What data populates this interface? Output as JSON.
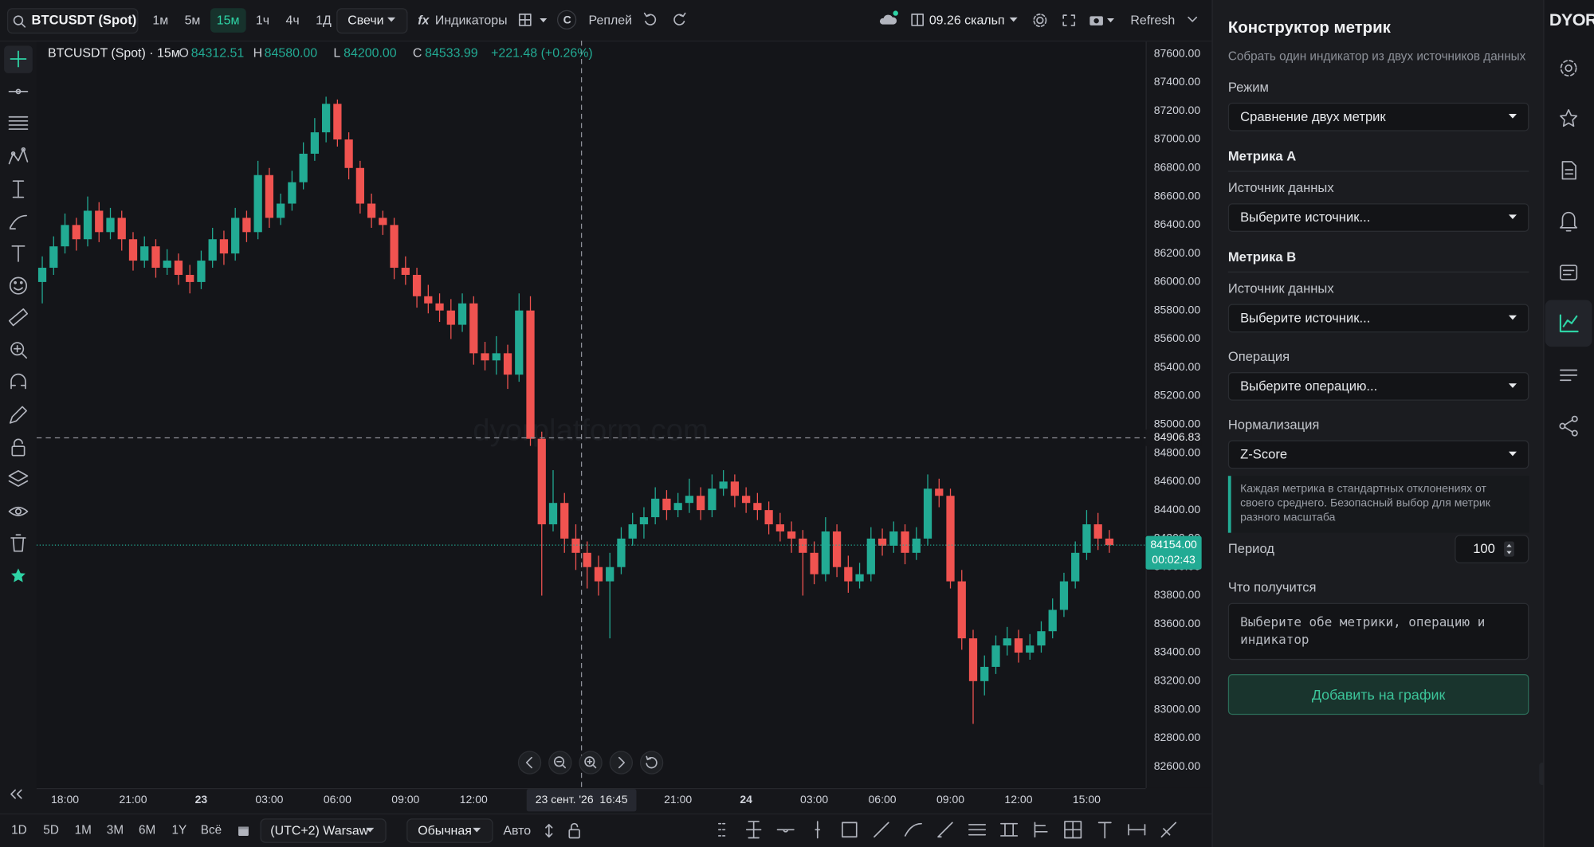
{
  "logo": "DYOR",
  "top_bar": {
    "symbol": "BTCUSDT (Spot)",
    "intervals": [
      "1м",
      "5м",
      "15м",
      "1ч",
      "4ч",
      "1Д"
    ],
    "active_interval": 2,
    "chart_style": "Свечи",
    "indicators_icon": "fx",
    "indicators": "Индикаторы",
    "compare": "C",
    "replay": "Реплей",
    "layout": "09.26 скальп",
    "refresh": "Refresh"
  },
  "legend": {
    "title": "BTCUSDT (Spot) · 15м",
    "open_label": "O",
    "open": "84312.51",
    "high_label": "H",
    "high": "84580.00",
    "low_label": "L",
    "low": "84200.00",
    "close_label": "C",
    "close": "84533.99",
    "change": "+221.48 (+0.26%)"
  },
  "chart_data": {
    "type": "candlestick",
    "watermark": "dyorplatform.com",
    "up_color": "#22ab94",
    "down_color": "#f05350",
    "grid": false,
    "candles": [
      [
        86000,
        86180,
        85850,
        86100
      ],
      [
        86100,
        86320,
        86050,
        86250
      ],
      [
        86250,
        86480,
        86200,
        86400
      ],
      [
        86400,
        86450,
        86220,
        86300
      ],
      [
        86300,
        86600,
        86250,
        86500
      ],
      [
        86500,
        86560,
        86280,
        86350
      ],
      [
        86350,
        86520,
        86300,
        86450
      ],
      [
        86450,
        86500,
        86220,
        86300
      ],
      [
        86300,
        86350,
        86080,
        86150
      ],
      [
        86150,
        86320,
        86100,
        86250
      ],
      [
        86250,
        86300,
        86030,
        86100
      ],
      [
        86100,
        86230,
        86050,
        86150
      ],
      [
        86150,
        86200,
        85980,
        86050
      ],
      [
        86050,
        86120,
        85920,
        86000
      ],
      [
        86000,
        86220,
        85950,
        86150
      ],
      [
        86150,
        86380,
        86100,
        86300
      ],
      [
        86300,
        86360,
        86120,
        86200
      ],
      [
        86200,
        86520,
        86150,
        86450
      ],
      [
        86450,
        86500,
        86280,
        86350
      ],
      [
        86350,
        86850,
        86300,
        86750
      ],
      [
        86750,
        86800,
        86380,
        86450
      ],
      [
        86450,
        86620,
        86400,
        86550
      ],
      [
        86550,
        86780,
        86500,
        86700
      ],
      [
        86700,
        86980,
        86650,
        86900
      ],
      [
        86900,
        87150,
        86850,
        87050
      ],
      [
        87050,
        87300,
        86980,
        87250
      ],
      [
        87250,
        87280,
        86950,
        87000
      ],
      [
        87000,
        87050,
        86720,
        86800
      ],
      [
        86800,
        86850,
        86480,
        86550
      ],
      [
        86550,
        86620,
        86380,
        86450
      ],
      [
        86450,
        86500,
        86330,
        86400
      ],
      [
        86400,
        86450,
        86020,
        86100
      ],
      [
        86100,
        86180,
        85980,
        86050
      ],
      [
        86050,
        86100,
        85820,
        85900
      ],
      [
        85900,
        85980,
        85780,
        85850
      ],
      [
        85850,
        85920,
        85720,
        85800
      ],
      [
        85800,
        85880,
        85600,
        85700
      ],
      [
        85700,
        85920,
        85650,
        85850
      ],
      [
        85850,
        85900,
        85420,
        85500
      ],
      [
        85500,
        85580,
        85380,
        85450
      ],
      [
        85450,
        85620,
        85350,
        85500
      ],
      [
        85500,
        85560,
        85250,
        85350
      ],
      [
        85350,
        85920,
        85300,
        85800
      ],
      [
        85800,
        85900,
        84850,
        84900
      ],
      [
        84900,
        84950,
        83800,
        84300
      ],
      [
        84300,
        84680,
        84250,
        84450
      ],
      [
        84450,
        84520,
        84100,
        84200
      ],
      [
        84200,
        84300,
        83980,
        84100
      ],
      [
        84100,
        84180,
        83850,
        84000
      ],
      [
        84000,
        84080,
        83800,
        83900
      ],
      [
        83900,
        84100,
        83500,
        84000
      ],
      [
        84000,
        84280,
        83950,
        84200
      ],
      [
        84200,
        84380,
        84150,
        84300
      ],
      [
        84300,
        84420,
        84200,
        84350
      ],
      [
        84350,
        84560,
        84300,
        84480
      ],
      [
        84480,
        84540,
        84330,
        84400
      ],
      [
        84400,
        84520,
        84350,
        84450
      ],
      [
        84450,
        84620,
        84380,
        84500
      ],
      [
        84500,
        84560,
        84330,
        84400
      ],
      [
        84400,
        84650,
        84350,
        84550
      ],
      [
        84550,
        84680,
        84500,
        84600
      ],
      [
        84600,
        84650,
        84420,
        84500
      ],
      [
        84500,
        84560,
        84380,
        84450
      ],
      [
        84450,
        84520,
        84330,
        84400
      ],
      [
        84400,
        84460,
        84230,
        84300
      ],
      [
        84300,
        84380,
        84180,
        84250
      ],
      [
        84250,
        84320,
        84100,
        84200
      ],
      [
        84200,
        84260,
        83800,
        84100
      ],
      [
        84100,
        84180,
        83880,
        83950
      ],
      [
        83950,
        84350,
        83900,
        84250
      ],
      [
        84250,
        84300,
        83930,
        84000
      ],
      [
        84000,
        84080,
        83820,
        83900
      ],
      [
        83900,
        84030,
        83850,
        83950
      ],
      [
        83950,
        84280,
        83900,
        84200
      ],
      [
        84200,
        84270,
        84080,
        84150
      ],
      [
        84150,
        84320,
        84100,
        84250
      ],
      [
        84250,
        84300,
        84020,
        84100
      ],
      [
        84100,
        84280,
        84050,
        84200
      ],
      [
        84200,
        84650,
        84150,
        84550
      ],
      [
        84550,
        84620,
        84420,
        84500
      ],
      [
        84500,
        84550,
        83850,
        83900
      ],
      [
        83900,
        83980,
        83420,
        83500
      ],
      [
        83500,
        83560,
        82900,
        83200
      ],
      [
        83200,
        83380,
        83100,
        83300
      ],
      [
        83300,
        83520,
        83250,
        83450
      ],
      [
        83450,
        83580,
        83380,
        83500
      ],
      [
        83500,
        83560,
        83330,
        83400
      ],
      [
        83400,
        83530,
        83350,
        83450
      ],
      [
        83450,
        83620,
        83400,
        83550
      ],
      [
        83550,
        83780,
        83500,
        83700
      ],
      [
        83700,
        83960,
        83650,
        83900
      ],
      [
        83900,
        84180,
        83850,
        84100
      ],
      [
        84100,
        84400,
        84050,
        84300
      ],
      [
        84300,
        84380,
        84120,
        84200
      ],
      [
        84200,
        84260,
        84100,
        84154
      ]
    ],
    "xlim": [
      -0.5,
      97.2
    ],
    "xticks": [
      {
        "value": 2,
        "label": "18:00"
      },
      {
        "value": 8,
        "label": "21:00"
      },
      {
        "value": 14,
        "label": "23"
      },
      {
        "value": 20,
        "label": "03:00"
      },
      {
        "value": 26,
        "label": "06:00"
      },
      {
        "value": 32,
        "label": "09:00"
      },
      {
        "value": 38,
        "label": "12:00"
      },
      {
        "value": 56,
        "label": "21:00"
      },
      {
        "value": 62,
        "label": "24"
      },
      {
        "value": 68,
        "label": "03:00"
      },
      {
        "value": 74,
        "label": "06:00"
      },
      {
        "value": 80,
        "label": "09:00"
      },
      {
        "value": 86,
        "label": "12:00"
      },
      {
        "value": 92,
        "label": "15:00"
      }
    ],
    "ylim": [
      82450,
      87693
    ],
    "yticks": [
      {
        "value": 87600,
        "label": "87600.00"
      },
      {
        "value": 87400,
        "label": "87400.00"
      },
      {
        "value": 87200,
        "label": "87200.00"
      },
      {
        "value": 87000,
        "label": "87000.00"
      },
      {
        "value": 86800,
        "label": "86800.00"
      },
      {
        "value": 86600,
        "label": "86600.00"
      },
      {
        "value": 86400,
        "label": "86400.00"
      },
      {
        "value": 86200,
        "label": "86200.00"
      },
      {
        "value": 86000,
        "label": "86000.00"
      },
      {
        "value": 85800,
        "label": "85800.00"
      },
      {
        "value": 85600,
        "label": "85600.00"
      },
      {
        "value": 85400,
        "label": "85400.00"
      },
      {
        "value": 85200,
        "label": "85200.00"
      },
      {
        "value": 85000,
        "label": "85000.00"
      },
      {
        "value": 84800,
        "label": "84800.00"
      },
      {
        "value": 84600,
        "label": "84600.00"
      },
      {
        "value": 84400,
        "label": "84400.00"
      },
      {
        "value": 84200,
        "label": "84200.00"
      },
      {
        "value": 84000,
        "label": "84000.00"
      },
      {
        "value": 83800,
        "label": "83800.00"
      },
      {
        "value": 83600,
        "label": "83600.00"
      },
      {
        "value": 83400,
        "label": "83400.00"
      },
      {
        "value": 83200,
        "label": "83200.00"
      },
      {
        "value": 83000,
        "label": "83000.00"
      },
      {
        "value": 82800,
        "label": "82800.00"
      },
      {
        "value": 82600,
        "label": "82600.00"
      }
    ],
    "last_price": {
      "value": 84154,
      "label": "84154.00"
    },
    "countdown": "00:02:43",
    "crosshair": {
      "x": 47.5,
      "time_label": "23 сент. '26  16:45",
      "price": {
        "value": 84906.83,
        "label": "84906.83"
      }
    }
  },
  "bottom_bar": {
    "ranges": [
      "1D",
      "5D",
      "1M",
      "3M",
      "6M",
      "1Y",
      "Всё"
    ],
    "timezone": "(UTC+2) Warsaw",
    "scale_mode": "Обычная",
    "auto": "Авто"
  },
  "side_panel": {
    "title": "Конструктор метрик",
    "subtitle": "Собрать один индикатор из двух источников данных",
    "mode_label": "Режим",
    "mode_value": "Сравнение двух метрик",
    "metric_a": {
      "heading": "Метрика A",
      "source_label": "Источник данных",
      "source_value": "Выберите источник..."
    },
    "metric_b": {
      "heading": "Метрика B",
      "source_label": "Источник данных",
      "source_value": "Выберите источник..."
    },
    "operation_label": "Операция",
    "operation_value": "Выберите операцию...",
    "normalization_label": "Нормализация",
    "normalization_value": "Z-Score",
    "normalization_hint": "Каждая метрика в стандартных отклонениях от своего среднего. Безопасный выбор для метрик разного масштаба",
    "period_label": "Период",
    "period_value": "100",
    "result_label": "Что получится",
    "result_text": "Выберите обе метрики, операцию и индикатор",
    "add_button": "Добавить на график"
  }
}
